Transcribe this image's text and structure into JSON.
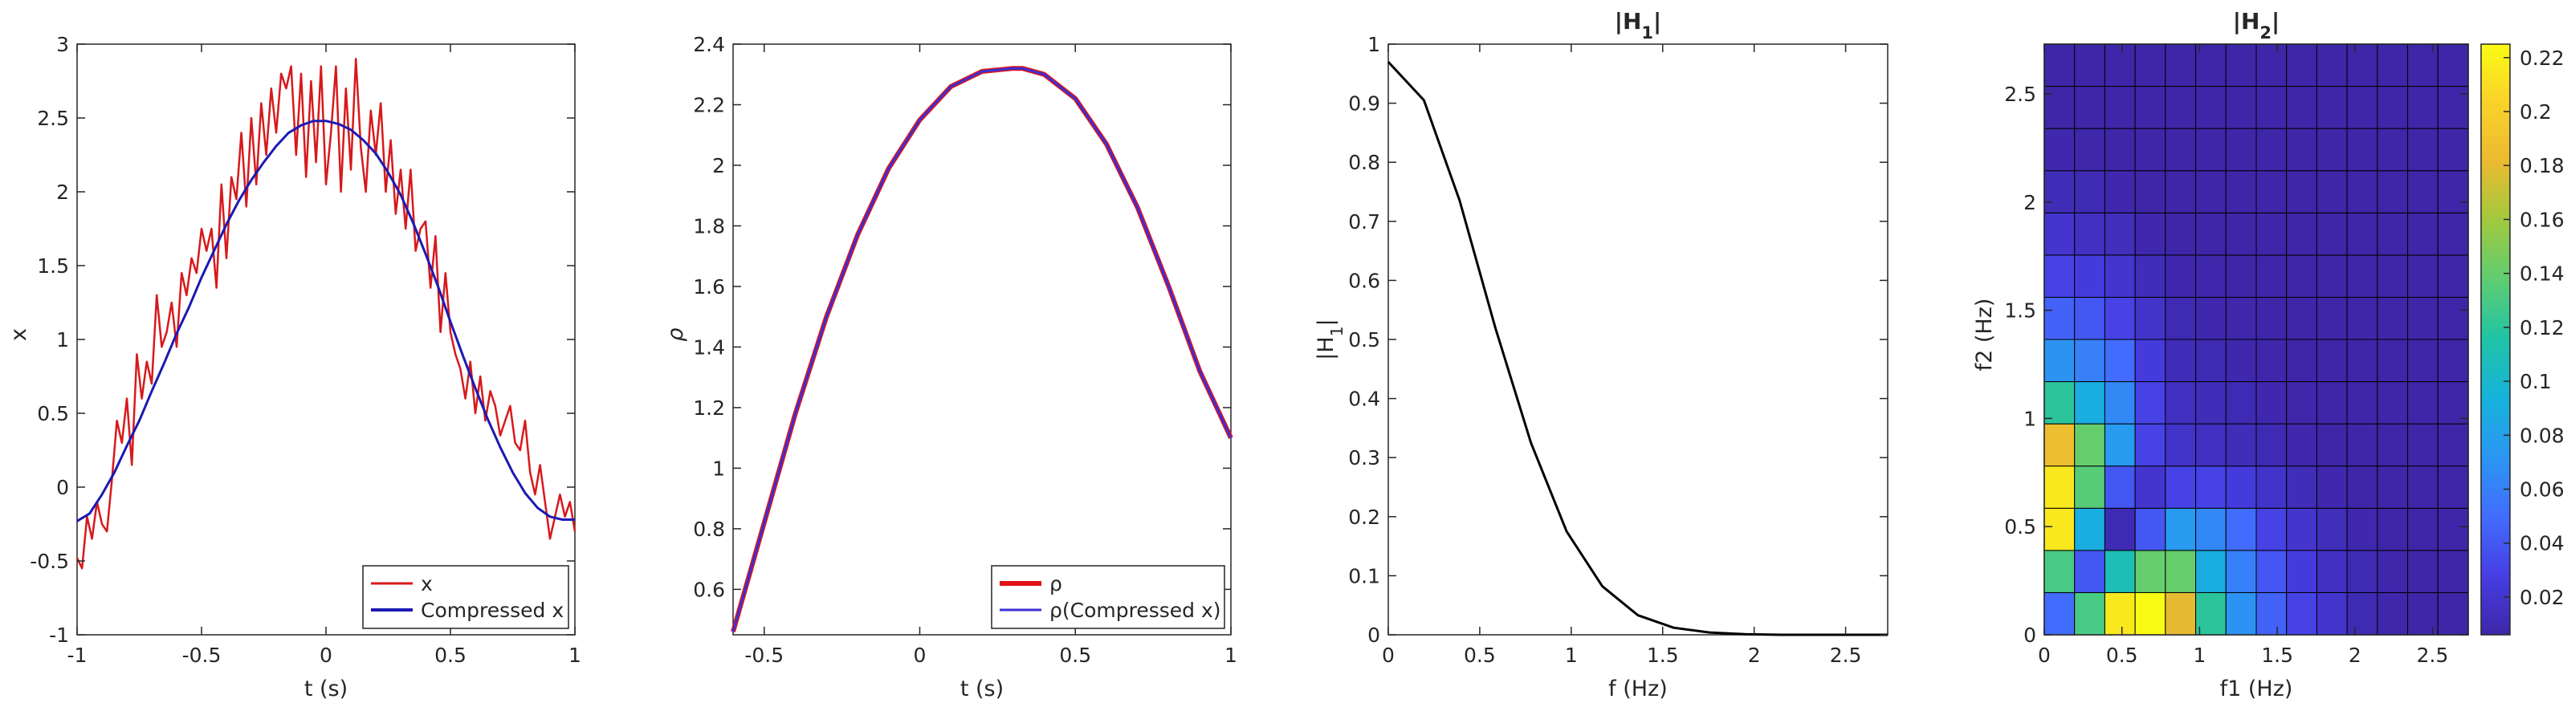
{
  "chart_data": [
    {
      "type": "line",
      "title": "",
      "xlabel": "t (s)",
      "ylabel": "x",
      "xlim": [
        -1,
        1
      ],
      "ylim": [
        -1,
        3
      ],
      "xticks": [
        -1,
        -0.5,
        0,
        0.5,
        1
      ],
      "xtick_labels": [
        "-1",
        "-0.5",
        "0",
        "0.5",
        "1"
      ],
      "yticks": [
        -1,
        -0.5,
        0,
        0.5,
        1,
        1.5,
        2,
        2.5,
        3
      ],
      "ytick_labels": [
        "-1",
        "-0.5",
        "0",
        "0.5",
        "1",
        "1.5",
        "2",
        "2.5",
        "3"
      ],
      "legend_position": "bottom-right",
      "series": [
        {
          "name": "x",
          "color": "#d7191c",
          "x": [
            -1.0,
            -0.98,
            -0.96,
            -0.94,
            -0.92,
            -0.9,
            -0.88,
            -0.86,
            -0.84,
            -0.82,
            -0.8,
            -0.78,
            -0.76,
            -0.74,
            -0.72,
            -0.7,
            -0.68,
            -0.66,
            -0.64,
            -0.62,
            -0.6,
            -0.58,
            -0.56,
            -0.54,
            -0.52,
            -0.5,
            -0.48,
            -0.46,
            -0.44,
            -0.42,
            -0.4,
            -0.38,
            -0.36,
            -0.34,
            -0.32,
            -0.3,
            -0.28,
            -0.26,
            -0.24,
            -0.22,
            -0.2,
            -0.18,
            -0.16,
            -0.14,
            -0.12,
            -0.1,
            -0.08,
            -0.06,
            -0.04,
            -0.02,
            0.0,
            0.02,
            0.04,
            0.06,
            0.08,
            0.1,
            0.12,
            0.14,
            0.16,
            0.18,
            0.2,
            0.22,
            0.24,
            0.26,
            0.28,
            0.3,
            0.32,
            0.34,
            0.36,
            0.38,
            0.4,
            0.42,
            0.44,
            0.46,
            0.48,
            0.5,
            0.52,
            0.54,
            0.56,
            0.58,
            0.6,
            0.62,
            0.64,
            0.66,
            0.68,
            0.7,
            0.72,
            0.74,
            0.76,
            0.78,
            0.8,
            0.82,
            0.84,
            0.86,
            0.88,
            0.9,
            0.92,
            0.94,
            0.96,
            0.98,
            1.0
          ],
          "y": [
            -0.48,
            -0.55,
            -0.2,
            -0.35,
            -0.1,
            -0.25,
            -0.3,
            0.05,
            0.45,
            0.3,
            0.6,
            0.15,
            0.9,
            0.6,
            0.85,
            0.7,
            1.3,
            0.95,
            1.05,
            1.25,
            0.95,
            1.45,
            1.3,
            1.55,
            1.45,
            1.75,
            1.6,
            1.75,
            1.35,
            2.05,
            1.55,
            2.1,
            1.95,
            2.4,
            1.9,
            2.5,
            2.05,
            2.6,
            2.25,
            2.7,
            2.4,
            2.8,
            2.7,
            2.85,
            2.25,
            2.8,
            2.1,
            2.75,
            2.2,
            2.85,
            2.05,
            2.4,
            2.85,
            2.0,
            2.7,
            2.15,
            2.9,
            2.3,
            2.0,
            2.55,
            2.25,
            2.6,
            2.0,
            2.35,
            1.85,
            2.15,
            1.75,
            2.15,
            1.6,
            1.75,
            1.8,
            1.35,
            1.7,
            1.05,
            1.45,
            1.05,
            0.9,
            0.8,
            0.6,
            0.85,
            0.5,
            0.75,
            0.45,
            0.65,
            0.55,
            0.35,
            0.45,
            0.55,
            0.3,
            0.25,
            0.45,
            0.1,
            -0.05,
            0.15,
            -0.1,
            -0.35,
            -0.2,
            -0.05,
            -0.2,
            -0.1,
            -0.3
          ]
        },
        {
          "name": "Compressed x",
          "color": "#1a1ab4",
          "x": [
            -1.0,
            -0.95,
            -0.9,
            -0.85,
            -0.8,
            -0.75,
            -0.7,
            -0.65,
            -0.6,
            -0.55,
            -0.5,
            -0.45,
            -0.4,
            -0.35,
            -0.3,
            -0.25,
            -0.2,
            -0.15,
            -0.1,
            -0.05,
            0.0,
            0.05,
            0.1,
            0.15,
            0.2,
            0.25,
            0.3,
            0.35,
            0.4,
            0.45,
            0.5,
            0.55,
            0.6,
            0.65,
            0.7,
            0.75,
            0.8,
            0.85,
            0.9,
            0.95,
            1.0
          ],
          "y": [
            -0.23,
            -0.18,
            -0.05,
            0.1,
            0.28,
            0.45,
            0.65,
            0.84,
            1.04,
            1.22,
            1.42,
            1.6,
            1.78,
            1.94,
            2.08,
            2.2,
            2.31,
            2.4,
            2.45,
            2.48,
            2.48,
            2.46,
            2.42,
            2.35,
            2.26,
            2.13,
            1.98,
            1.79,
            1.58,
            1.36,
            1.12,
            0.89,
            0.67,
            0.46,
            0.27,
            0.1,
            -0.04,
            -0.14,
            -0.2,
            -0.22,
            -0.22
          ]
        }
      ]
    },
    {
      "type": "line",
      "title": "",
      "xlabel": "t (s)",
      "ylabel": "ρ",
      "xlim": [
        -0.6,
        1
      ],
      "ylim": [
        0.45,
        2.4
      ],
      "xticks": [
        -0.5,
        0,
        0.5,
        1
      ],
      "xtick_labels": [
        "-0.5",
        "0",
        "0.5",
        "1"
      ],
      "yticks": [
        0.6,
        0.8,
        1,
        1.2,
        1.4,
        1.6,
        1.8,
        2,
        2.2,
        2.4
      ],
      "ytick_labels": [
        "0.6",
        "0.8",
        "1",
        "1.2",
        "1.4",
        "1.6",
        "1.8",
        "2",
        "2.2",
        "2.4"
      ],
      "legend_position": "bottom-right",
      "series": [
        {
          "name": "ρ",
          "color": "#e0141a",
          "x": [
            -0.6,
            -0.5,
            -0.4,
            -0.3,
            -0.2,
            -0.1,
            0.0,
            0.1,
            0.2,
            0.3,
            0.33,
            0.4,
            0.5,
            0.6,
            0.7,
            0.8,
            0.9,
            1.0
          ],
          "y": [
            0.46,
            0.82,
            1.18,
            1.5,
            1.77,
            1.99,
            2.15,
            2.26,
            2.31,
            2.32,
            2.32,
            2.3,
            2.22,
            2.07,
            1.86,
            1.6,
            1.32,
            1.1
          ]
        },
        {
          "name": "ρ(Compressed x)",
          "color": "#3a2fd4",
          "x": [
            -0.6,
            -0.5,
            -0.4,
            -0.3,
            -0.2,
            -0.1,
            0.0,
            0.1,
            0.2,
            0.3,
            0.33,
            0.4,
            0.5,
            0.6,
            0.7,
            0.8,
            0.9,
            1.0
          ],
          "y": [
            0.46,
            0.82,
            1.18,
            1.5,
            1.77,
            1.99,
            2.15,
            2.26,
            2.31,
            2.32,
            2.32,
            2.3,
            2.22,
            2.07,
            1.86,
            1.6,
            1.32,
            1.1
          ]
        }
      ]
    },
    {
      "type": "line",
      "title": "|H1|",
      "xlabel": "f (Hz)",
      "ylabel": "|H1|",
      "xlim": [
        0,
        2.73
      ],
      "ylim": [
        0,
        1
      ],
      "xticks": [
        0,
        0.5,
        1,
        1.5,
        2,
        2.5
      ],
      "xtick_labels": [
        "0",
        "0.5",
        "1",
        "1.5",
        "2",
        "2.5"
      ],
      "yticks": [
        0,
        0.1,
        0.2,
        0.3,
        0.4,
        0.5,
        0.6,
        0.7,
        0.8,
        0.9,
        1
      ],
      "ytick_labels": [
        "0",
        "0.1",
        "0.2",
        "0.3",
        "0.4",
        "0.5",
        "0.6",
        "0.7",
        "0.8",
        "0.9",
        "1"
      ],
      "series": [
        {
          "name": "|H1|",
          "color": "#000000",
          "x": [
            0,
            0.195,
            0.39,
            0.585,
            0.78,
            0.975,
            1.17,
            1.365,
            1.56,
            1.755,
            1.95,
            2.145,
            2.34,
            2.535,
            2.73
          ],
          "y": [
            0.97,
            0.905,
            0.735,
            0.52,
            0.325,
            0.175,
            0.082,
            0.033,
            0.012,
            0.004,
            0.001,
            0.0,
            0.0,
            0.0,
            0.0
          ]
        }
      ]
    },
    {
      "type": "heatmap",
      "title": "|H2|",
      "xlabel": "f1 (Hz)",
      "ylabel": "f2 (Hz)",
      "xlim": [
        0,
        2.73
      ],
      "ylim": [
        0,
        2.73
      ],
      "xticks": [
        0,
        0.5,
        1,
        1.5,
        2,
        2.5
      ],
      "xtick_labels": [
        "0",
        "0.5",
        "1",
        "1.5",
        "2",
        "2.5"
      ],
      "yticks": [
        0,
        0.5,
        1,
        1.5,
        2,
        2.5
      ],
      "ytick_labels": [
        "0",
        "0.5",
        "1",
        "1.5",
        "2",
        "2.5"
      ],
      "f1": [
        0,
        0.195,
        0.39,
        0.585,
        0.78,
        0.975,
        1.17,
        1.365,
        1.56,
        1.755,
        1.95,
        2.145,
        2.34,
        2.535
      ],
      "f2": [
        0,
        0.195,
        0.39,
        0.585,
        0.78,
        0.975,
        1.17,
        1.365,
        1.56,
        1.755,
        1.95,
        2.145,
        2.34,
        2.535
      ],
      "values": [
        [
          0.05,
          0.13,
          0.215,
          0.225,
          0.18,
          0.12,
          0.07,
          0.045,
          0.03,
          0.02,
          0.01,
          0.007,
          0.006,
          0.006
        ],
        [
          0.13,
          0.04,
          0.11,
          0.14,
          0.14,
          0.09,
          0.06,
          0.04,
          0.025,
          0.015,
          0.01,
          0.007,
          0.006,
          0.006
        ],
        [
          0.215,
          0.09,
          0.01,
          0.04,
          0.075,
          0.065,
          0.05,
          0.03,
          0.02,
          0.013,
          0.008,
          0.006,
          0.006,
          0.006
        ],
        [
          0.215,
          0.135,
          0.04,
          0.02,
          0.03,
          0.03,
          0.025,
          0.018,
          0.012,
          0.008,
          0.006,
          0.006,
          0.006,
          0.006
        ],
        [
          0.185,
          0.14,
          0.075,
          0.03,
          0.018,
          0.015,
          0.012,
          0.01,
          0.008,
          0.006,
          0.006,
          0.006,
          0.006,
          0.006
        ],
        [
          0.12,
          0.09,
          0.065,
          0.03,
          0.015,
          0.012,
          0.01,
          0.008,
          0.007,
          0.006,
          0.006,
          0.006,
          0.006,
          0.006
        ],
        [
          0.07,
          0.06,
          0.05,
          0.025,
          0.012,
          0.01,
          0.008,
          0.007,
          0.006,
          0.006,
          0.006,
          0.006,
          0.006,
          0.006
        ],
        [
          0.045,
          0.04,
          0.03,
          0.018,
          0.01,
          0.008,
          0.007,
          0.006,
          0.006,
          0.006,
          0.006,
          0.006,
          0.006,
          0.006
        ],
        [
          0.03,
          0.025,
          0.02,
          0.012,
          0.008,
          0.007,
          0.006,
          0.006,
          0.006,
          0.006,
          0.006,
          0.006,
          0.006,
          0.006
        ],
        [
          0.02,
          0.015,
          0.013,
          0.008,
          0.006,
          0.006,
          0.006,
          0.006,
          0.006,
          0.006,
          0.006,
          0.006,
          0.006,
          0.006
        ],
        [
          0.012,
          0.01,
          0.008,
          0.006,
          0.006,
          0.006,
          0.006,
          0.006,
          0.006,
          0.006,
          0.006,
          0.006,
          0.006,
          0.006
        ],
        [
          0.008,
          0.007,
          0.006,
          0.006,
          0.006,
          0.006,
          0.006,
          0.006,
          0.006,
          0.006,
          0.006,
          0.006,
          0.006,
          0.006
        ],
        [
          0.006,
          0.006,
          0.006,
          0.006,
          0.006,
          0.006,
          0.006,
          0.006,
          0.006,
          0.006,
          0.006,
          0.006,
          0.006,
          0.006
        ],
        [
          0.006,
          0.006,
          0.006,
          0.006,
          0.006,
          0.006,
          0.006,
          0.006,
          0.006,
          0.006,
          0.006,
          0.006,
          0.006,
          0.006
        ]
      ],
      "colorbar": {
        "colormap": "parula",
        "clim": [
          0.006,
          0.225
        ],
        "ticks": [
          0.02,
          0.04,
          0.06,
          0.08,
          0.1,
          0.12,
          0.14,
          0.16,
          0.18,
          0.2,
          0.22
        ],
        "tick_labels": [
          "0.02",
          "0.04",
          "0.06",
          "0.08",
          "0.1",
          "0.12",
          "0.14",
          "0.16",
          "0.18",
          "0.2",
          "0.22"
        ]
      }
    }
  ]
}
